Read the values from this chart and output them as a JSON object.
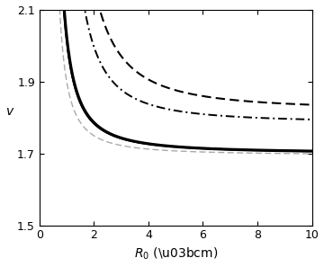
{
  "xlabel": "$R_0$ (\\u03bcm)",
  "ylabel": "$v$",
  "xlim": [
    0,
    10
  ],
  "ylim": [
    1.5,
    2.1
  ],
  "yticks": [
    1.5,
    1.7,
    1.9,
    2.1
  ],
  "xticks": [
    0,
    2,
    4,
    6,
    8,
    10
  ],
  "background_color": "#ffffff",
  "line_params": [
    {
      "style": "solid",
      "color": "#777777",
      "lw": 0.8,
      "b": 1.7,
      "c": 0.18,
      "alpha": 1.5,
      "x0": 0.55
    },
    {
      "style": "solid",
      "color": "#000000",
      "lw": 1.5,
      "b": 1.7,
      "c": 0.185,
      "alpha": 1.5,
      "x0": 0.55
    },
    {
      "style": "solid",
      "color": "#000000",
      "lw": 2.3,
      "b": 1.7,
      "c": 0.19,
      "alpha": 1.5,
      "x0": 0.55
    },
    {
      "style": "dashed",
      "color": "#aaaaaa",
      "lw": 1.0,
      "b": 1.695,
      "c": 0.12,
      "alpha": 1.5,
      "x0": 0.55
    },
    {
      "style": "dashdot",
      "color": "#000000",
      "lw": 1.4,
      "b": 1.785,
      "c": 0.55,
      "alpha": 1.8,
      "x0": 0.55
    },
    {
      "style": "dashed",
      "color": "#000000",
      "lw": 1.5,
      "b": 1.82,
      "c": 0.9,
      "alpha": 1.8,
      "x0": 0.55
    }
  ]
}
